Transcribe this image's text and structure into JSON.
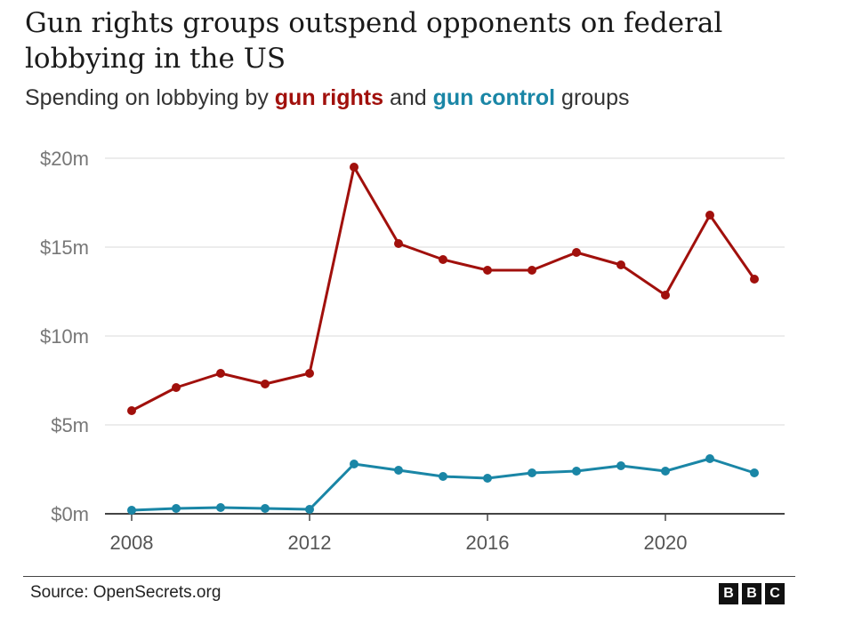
{
  "title": "Gun rights groups outspend opponents on federal lobbying in the US",
  "subtitle": {
    "prefix": "Spending on lobbying by ",
    "series1": "gun rights",
    "middle": " and ",
    "series2": "gun control",
    "suffix": " groups"
  },
  "source": "Source: OpenSecrets.org",
  "logo": [
    "B",
    "B",
    "C"
  ],
  "colors": {
    "gun_rights": "#a1100c",
    "gun_control": "#1a86a6",
    "grid": "#d9d9d9",
    "axis": "#444444"
  },
  "chart_data": {
    "type": "line",
    "x": [
      2008,
      2009,
      2010,
      2011,
      2012,
      2013,
      2014,
      2015,
      2016,
      2017,
      2018,
      2019,
      2020,
      2021,
      2022
    ],
    "series": [
      {
        "name": "gun rights",
        "values": [
          5.8,
          7.1,
          7.9,
          7.3,
          7.9,
          19.5,
          15.2,
          14.3,
          13.7,
          13.7,
          14.7,
          14.0,
          12.3,
          16.8,
          13.2
        ]
      },
      {
        "name": "gun control",
        "values": [
          0.2,
          0.3,
          0.35,
          0.3,
          0.25,
          2.8,
          2.45,
          2.1,
          2.0,
          2.3,
          2.4,
          2.7,
          2.4,
          3.1,
          2.3
        ]
      }
    ],
    "ylim": [
      0,
      20
    ],
    "yticks": [
      0,
      5,
      10,
      15,
      20
    ],
    "ytick_labels": [
      "$0m",
      "$5m",
      "$10m",
      "$15m",
      "$20m"
    ],
    "xticks": [
      2008,
      2012,
      2016,
      2020
    ],
    "xtick_labels": [
      "2008",
      "2012",
      "2016",
      "2020"
    ],
    "xlabel": "",
    "ylabel": "",
    "grid": true
  }
}
